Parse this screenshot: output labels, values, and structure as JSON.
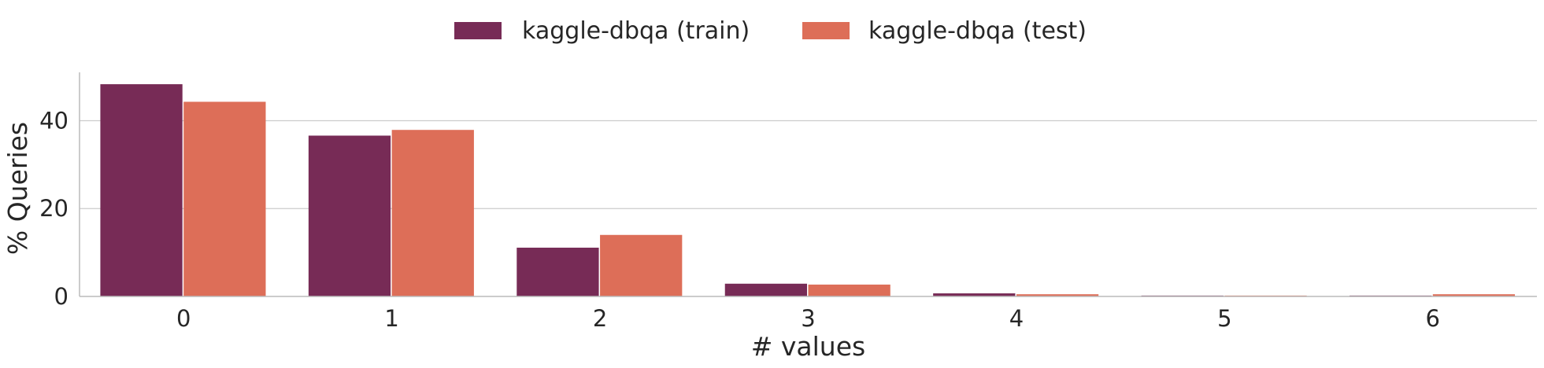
{
  "chart_data": {
    "type": "bar",
    "categories": [
      "0",
      "1",
      "2",
      "3",
      "4",
      "5",
      "6"
    ],
    "series": [
      {
        "name": "kaggle-dbqa (train)",
        "color": "#772b56",
        "values": [
          48.3,
          36.6,
          11.1,
          2.9,
          0.7,
          0.2,
          0.2
        ]
      },
      {
        "name": "kaggle-dbqa (test)",
        "color": "#dd6e58",
        "values": [
          44.3,
          37.9,
          14.0,
          2.7,
          0.5,
          0.2,
          0.5
        ]
      }
    ],
    "xlabel": "# values",
    "ylabel": "% Queries",
    "ylim": [
      0,
      51
    ],
    "yticks": [
      0,
      20,
      40
    ],
    "grid": "horizontal",
    "legend_position": "top-center"
  }
}
